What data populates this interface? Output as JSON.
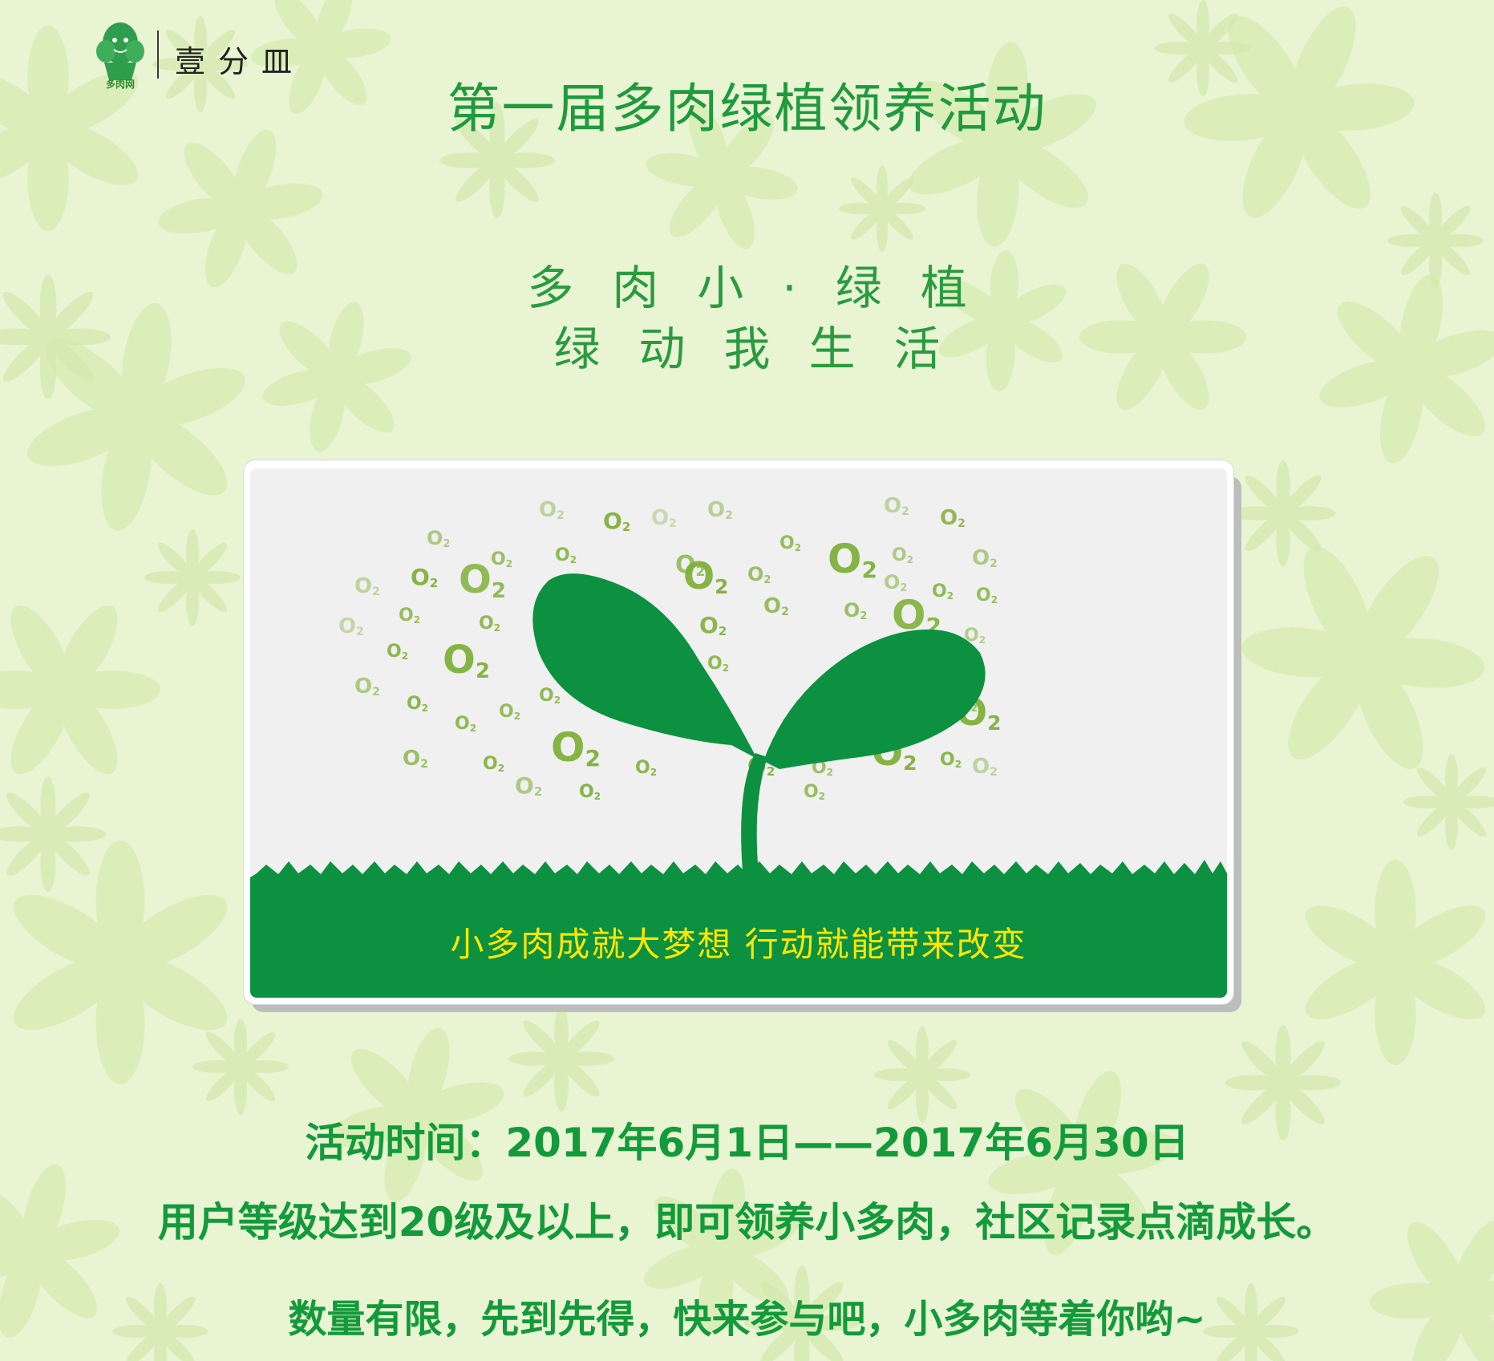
{
  "header": {
    "logo_caption": "多肉网",
    "brand_name": "壹分皿"
  },
  "title": "第一届多肉绿植领养活动",
  "slogan": {
    "line1": "多肉小·绿植",
    "line2": "绿动我生活"
  },
  "card": {
    "o2_label": "O2",
    "caption": "小多肉成就大梦想  行动就能带来改变"
  },
  "info": {
    "time": "活动时间：2017年6月1日——2017年6月30日",
    "level": "用户等级达到20级及以上，即可领养小多肉，社区记录点滴成长。",
    "hurry": "数量有限，先到先得，快来参与吧，小多肉等着你哟~"
  },
  "colors": {
    "background": "#e9f4d3",
    "flower": "#d8ecb6",
    "title_green": "#1f9a3c",
    "leaf_green": "#0b9140",
    "o2_green": "#7fb03a",
    "caption_yellow": "#ffe600"
  },
  "icons": [
    "cactus-logo-icon",
    "seedling-icon",
    "o2-molecule-icon"
  ]
}
